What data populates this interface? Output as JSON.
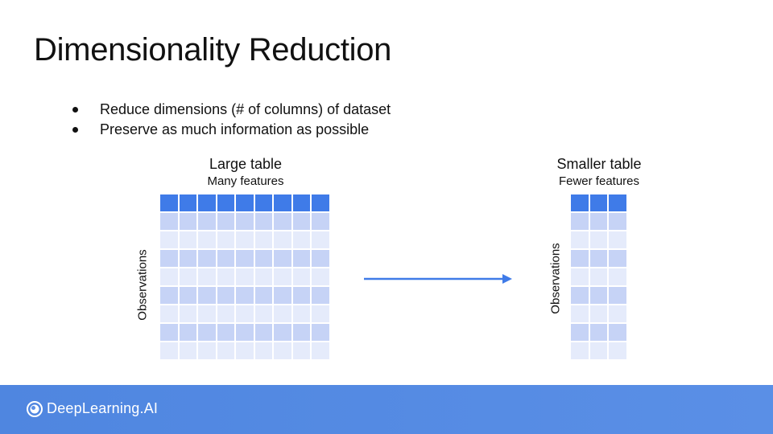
{
  "slide": {
    "title": "Dimensionality Reduction",
    "bullets": [
      "Reduce dimensions (# of columns) of dataset",
      "Preserve as much information as possible"
    ]
  },
  "large_table": {
    "title": "Large table",
    "subtitle": "Many features",
    "axis_label": "Observations",
    "columns": 9,
    "rows": 9
  },
  "small_table": {
    "title": "Smaller table",
    "subtitle": "Fewer features",
    "axis_label": "Observations",
    "columns": 3,
    "rows": 9
  },
  "colors": {
    "header": "#3f7be8",
    "row_dark": "#c6d3f6",
    "row_light": "#e5ebfb",
    "arrow": "#3f7be8",
    "footer": "#4f86e0"
  },
  "footer": {
    "logo_text": "DeepLearning.AI",
    "logo_icon": "deeplearning-ai-logo-icon"
  }
}
